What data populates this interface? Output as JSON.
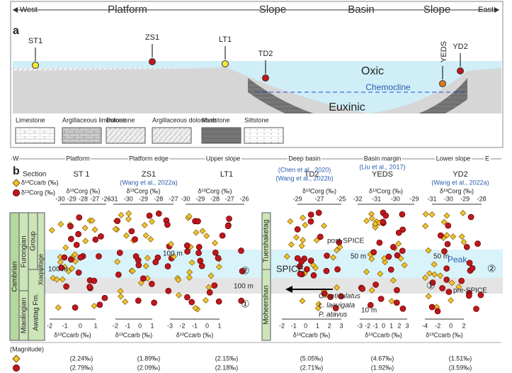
{
  "panel_a": {
    "label": "a",
    "directions": [
      "West",
      "East"
    ],
    "zones": [
      "Platform",
      "Slope",
      "Basin",
      "Slope"
    ],
    "sites": [
      "ST1",
      "ZS1",
      "LT1",
      "TD2",
      "YEDS",
      "YD2"
    ],
    "water": [
      "Oxic",
      "Chemocline",
      "Euxinic"
    ],
    "lithology": [
      "Limestone",
      "Argillaceous limestone",
      "Dolostone",
      "Argillaceous dolostone",
      "Mudstone",
      "Siltstone"
    ]
  },
  "panel_b": {
    "label": "b",
    "zones": [
      "W",
      "Platform",
      "Platform edge",
      "Upper slope",
      "Deep basin",
      "Basin margin",
      "Lower slope",
      "E"
    ],
    "legend": {
      "title": "Section",
      "items": [
        "δ¹³Ccarb (‰)",
        "δ¹³Corg (‰)"
      ]
    },
    "org_axis": "δ¹³Corg (‰)",
    "carb_axis": "δ¹³Ccarb (‰)",
    "sections": [
      {
        "name": "ST 1",
        "org_ticks": [
          "-30",
          "-29",
          "-28",
          "-27",
          "-26"
        ],
        "carb_ticks": [
          "-2",
          "-1",
          "0",
          "1"
        ],
        "carb_mag": "(2.24‰)",
        "org_mag": "(2.79‰)"
      },
      {
        "name": "ZS1",
        "ref": "(Wang et al., 2022a)",
        "org_ticks": [
          "-31",
          "-30",
          "-29",
          "-28",
          "-27"
        ],
        "carb_ticks": [
          "-2",
          "-1",
          "0",
          "1"
        ],
        "carb_mag": "(1.89‰)",
        "org_mag": "(2.09‰)"
      },
      {
        "name": "LT1",
        "org_ticks": [
          "-30",
          "-29",
          "-28",
          "-27",
          "-26"
        ],
        "carb_ticks": [
          "-3",
          "-2",
          "-1",
          "0",
          "1"
        ],
        "carb_mag": "(2.15‰)",
        "org_mag": "(2.18‰)"
      },
      {
        "name": "TD2",
        "refs": [
          "(Chen et al., 2020)",
          "(Wang et al., 2022b)"
        ],
        "org_ticks": [
          "-29",
          "-27",
          "-25"
        ],
        "carb_ticks": [
          "-2",
          "-1",
          "0",
          "1",
          "2",
          "3"
        ],
        "carb_mag": "(5.05‰)",
        "org_mag": "(2.71‰)"
      },
      {
        "name": "YEDS",
        "ref": "(Liu et al., 2017)",
        "org_ticks": [
          "-32",
          "-31",
          "-30",
          "-29"
        ],
        "carb_ticks": [
          "-3",
          "-2",
          "-1",
          "0",
          "1",
          "2",
          "3"
        ],
        "carb_mag": "(4.67‰)",
        "org_mag": "(1.92‰)"
      },
      {
        "name": "YD2",
        "ref": "(Wang et al., 2022a)",
        "org_ticks": [
          "-31",
          "-30",
          "-29",
          "-28"
        ],
        "carb_ticks": [
          "-4",
          "-2",
          "0",
          "2"
        ],
        "carb_mag": "(1.51‰)",
        "org_mag": "(3.59‰)"
      }
    ],
    "stratigraphy": {
      "system": "Cambrian",
      "series": [
        "Furongian",
        "Miaolingian"
      ],
      "units": [
        "Group",
        "Xiaqiultage",
        "Awatag Fm."
      ],
      "basin_units": [
        "Tuershaketag",
        "Moheershan"
      ]
    },
    "annotations": {
      "scale_100": "100 m",
      "scale_50": "50 m",
      "scale_10": "10 m",
      "spice": "SPICE",
      "post": "post-SPICE",
      "pre": "pre-SPICE",
      "peak": "Peak",
      "one": "①",
      "two": "②",
      "fossils": [
        "G. reticulatus",
        "L. laevigata",
        "P. atavus"
      ]
    },
    "magnitude": "(Magnitude)"
  }
}
